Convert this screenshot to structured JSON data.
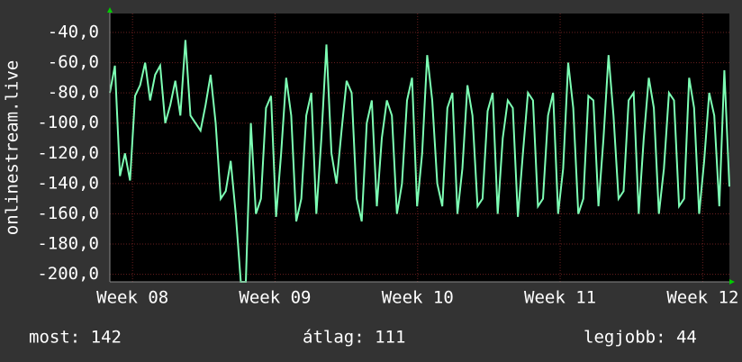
{
  "chart_data": {
    "type": "line",
    "y_label": "onlinestream.live",
    "series": [
      {
        "color": "#7dffb4",
        "values": [
          -80,
          -62,
          -135,
          -120,
          -138,
          -82,
          -75,
          -60,
          -85,
          -68,
          -62,
          -100,
          -88,
          -72,
          -95,
          -45,
          -95,
          -100,
          -105,
          -88,
          -68,
          -100,
          -150,
          -145,
          -125,
          -160,
          -205,
          -205,
          -100,
          -160,
          -150,
          -90,
          -82,
          -162,
          -120,
          -70,
          -95,
          -165,
          -150,
          -95,
          -80,
          -160,
          -110,
          -48,
          -120,
          -140,
          -105,
          -72,
          -80,
          -150,
          -165,
          -100,
          -85,
          -155,
          -110,
          -85,
          -95,
          -160,
          -140,
          -85,
          -70,
          -155,
          -120,
          -55,
          -85,
          -140,
          -155,
          -90,
          -80,
          -160,
          -130,
          -75,
          -95,
          -155,
          -150,
          -92,
          -80,
          -160,
          -110,
          -85,
          -90,
          -162,
          -120,
          -80,
          -85,
          -155,
          -150,
          -95,
          -80,
          -160,
          -130,
          -60,
          -90,
          -160,
          -150,
          -82,
          -85,
          -155,
          -110,
          -55,
          -95,
          -150,
          -145,
          -85,
          -80,
          -160,
          -110,
          -70,
          -90,
          -160,
          -130,
          -80,
          -85,
          -155,
          -150,
          -70,
          -90,
          -160,
          -125,
          -80,
          -95,
          -155,
          -65,
          -142
        ]
      }
    ],
    "xlim": [
      0,
      123
    ],
    "xticks": [
      {
        "value": 4.5,
        "label": "Week 08"
      },
      {
        "value": 32.8,
        "label": "Week 09"
      },
      {
        "value": 61.1,
        "label": "Week 10"
      },
      {
        "value": 89.4,
        "label": "Week 11"
      },
      {
        "value": 117.7,
        "label": "Week 12"
      }
    ],
    "ylim": [
      -205,
      -27.5
    ],
    "yticks": [
      {
        "value": -40,
        "label": "-40,0"
      },
      {
        "value": -60,
        "label": "-60,0"
      },
      {
        "value": -80,
        "label": "-80,0"
      },
      {
        "value": -100,
        "label": "-100,0"
      },
      {
        "value": -120,
        "label": "-120,0"
      },
      {
        "value": -140,
        "label": "-140,0"
      },
      {
        "value": -160,
        "label": "-160,0"
      },
      {
        "value": -180,
        "label": "-180,0"
      },
      {
        "value": -200,
        "label": "-200,0"
      }
    ],
    "grid": true,
    "stats": [
      "most: 142",
      "átlag: 111",
      "legjobb: 44"
    ]
  }
}
